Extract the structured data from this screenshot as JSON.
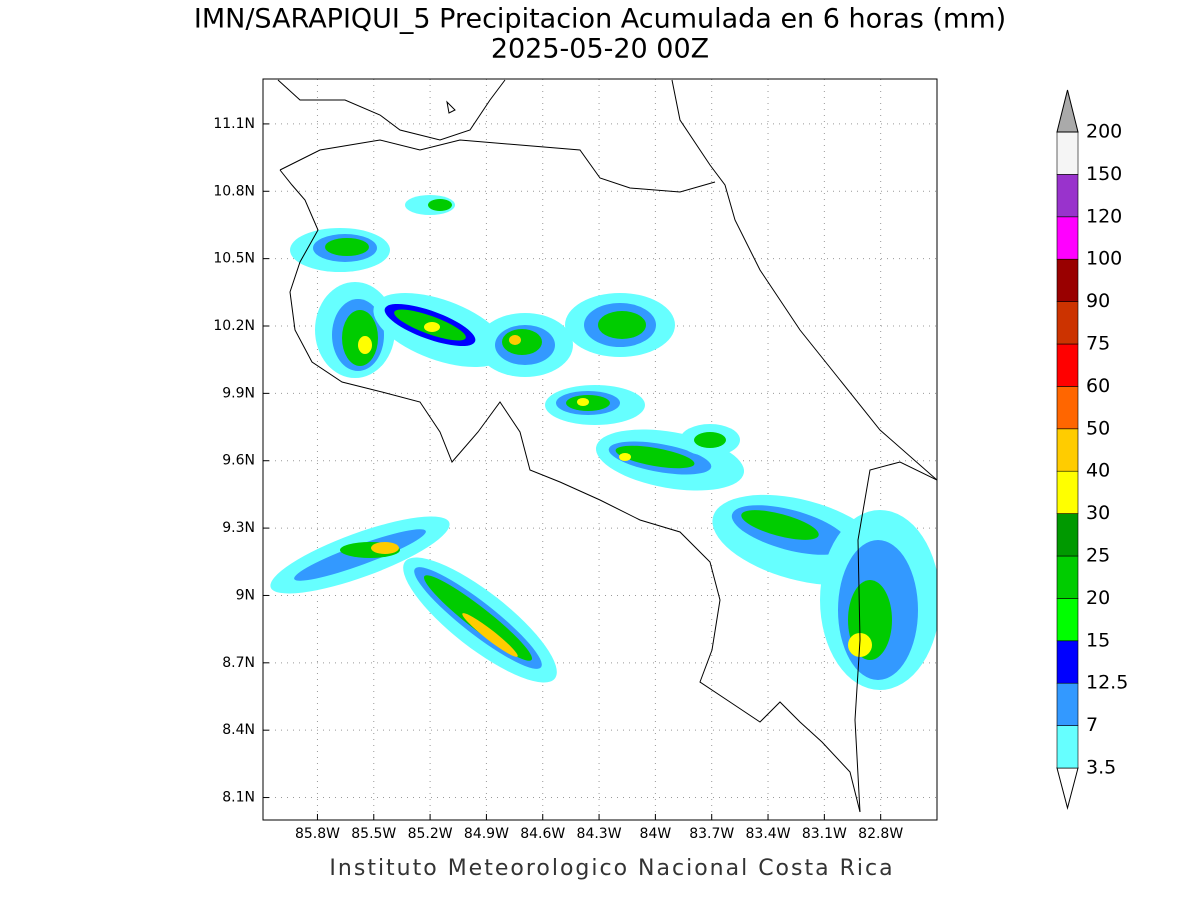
{
  "header": {
    "title": "IMN/SARAPIQUI_5 Precipitacion Acumulada en 6 horas (mm)",
    "subtitle": "2025-05-20 00Z"
  },
  "map": {
    "xlim": [
      -86.09,
      -82.5
    ],
    "ylim": [
      8.0,
      11.3
    ],
    "xticks": [
      {
        "value": -85.8,
        "label": "85.8W"
      },
      {
        "value": -85.5,
        "label": "85.5W"
      },
      {
        "value": -85.2,
        "label": "85.2W"
      },
      {
        "value": -84.9,
        "label": "84.9W"
      },
      {
        "value": -84.6,
        "label": "84.6W"
      },
      {
        "value": -84.3,
        "label": "84.3W"
      },
      {
        "value": -84.0,
        "label": "84W"
      },
      {
        "value": -83.7,
        "label": "83.7W"
      },
      {
        "value": -83.4,
        "label": "83.4W"
      },
      {
        "value": -83.1,
        "label": "83.1W"
      },
      {
        "value": -82.8,
        "label": "82.8W"
      }
    ],
    "yticks": [
      {
        "value": 8.1,
        "label": "8.1N"
      },
      {
        "value": 8.4,
        "label": "8.4N"
      },
      {
        "value": 8.7,
        "label": "8.7N"
      },
      {
        "value": 9.0,
        "label": "9N"
      },
      {
        "value": 9.3,
        "label": "9.3N"
      },
      {
        "value": 9.6,
        "label": "9.6N"
      },
      {
        "value": 9.9,
        "label": "9.9N"
      },
      {
        "value": 10.2,
        "label": "10.2N"
      },
      {
        "value": 10.5,
        "label": "10.5N"
      },
      {
        "value": 10.8,
        "label": "10.8N"
      },
      {
        "value": 11.1,
        "label": "11.1N"
      }
    ]
  },
  "colorbar": {
    "levels": [
      3.5,
      7,
      12.5,
      15,
      20,
      25,
      30,
      40,
      50,
      60,
      75,
      90,
      100,
      120,
      150,
      200
    ],
    "colors": [
      "#ffffff",
      "#66ffff",
      "#3399ff",
      "#0000ff",
      "#00ff00",
      "#00cc00",
      "#009900",
      "#ffff00",
      "#ffcc00",
      "#ff6600",
      "#ff0000",
      "#cc3300",
      "#990000",
      "#ff00ff",
      "#9933cc",
      "#f5f5f5",
      "#aaaaaa"
    ]
  },
  "footer": "Instituto Meteorologico Nacional Costa Rica"
}
